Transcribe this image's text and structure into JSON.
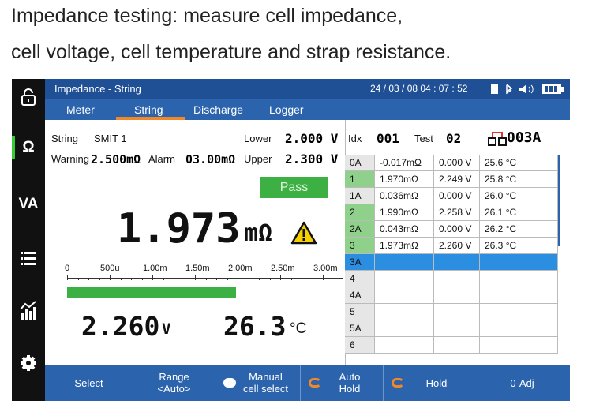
{
  "caption": [
    "Impedance testing: measure cell impedance,",
    "cell voltage, cell temperature and strap resistance."
  ],
  "sidebar": [
    "Ω",
    "VA"
  ],
  "status_bar": {
    "title": "Impedance - String",
    "datetime": "24 / 03 / 08  04 : 07 : 52"
  },
  "tabs": [
    "Meter",
    "String",
    "Discharge",
    "Logger"
  ],
  "string": {
    "label": "String",
    "name": "SMIT 1",
    "lower_label": "Lower",
    "lower": "2.000 V",
    "warning_label": "Warning",
    "warning": "2.500mΩ",
    "alarm_label": "Alarm",
    "alarm": "03.00mΩ",
    "upper_label": "Upper",
    "upper": "2.300 V"
  },
  "status": "Pass",
  "reading": {
    "value": "1.973",
    "unit": "mΩ"
  },
  "scale": [
    "0",
    "500u",
    "1.00m",
    "1.50m",
    "2.00m",
    "2.50m",
    "3.00m"
  ],
  "voltage": {
    "value": "2.260",
    "unit": "V"
  },
  "temperature": {
    "value": "26.3",
    "unit": "°C"
  },
  "table": {
    "idx_label": "Idx",
    "idx": "001",
    "test_label": "Test",
    "test": "02",
    "strap": "003A",
    "rows": [
      [
        "0A",
        "-0.017mΩ",
        "0.000 V",
        "25.6 °C"
      ],
      [
        "1",
        "1.970mΩ",
        "2.249 V",
        "25.8 °C"
      ],
      [
        "1A",
        "0.036mΩ",
        "0.000 V",
        "26.0 °C"
      ],
      [
        "2",
        "1.990mΩ",
        "2.258 V",
        "26.1 °C"
      ],
      [
        "2A",
        "0.043mΩ",
        "0.000 V",
        "26.2 °C"
      ],
      [
        "3",
        "1.973mΩ",
        "2.260 V",
        "26.3 °C"
      ],
      [
        "3A"
      ],
      [
        "4"
      ],
      [
        "4A"
      ],
      [
        "5"
      ],
      [
        "5A"
      ],
      [
        "6"
      ]
    ]
  },
  "buttons": [
    [
      "Select"
    ],
    [
      "Range",
      "<Auto>"
    ],
    [
      "Manual",
      "cell select"
    ],
    [
      "Auto",
      "Hold"
    ],
    [
      "Hold"
    ],
    [
      "0-Adj"
    ]
  ]
}
